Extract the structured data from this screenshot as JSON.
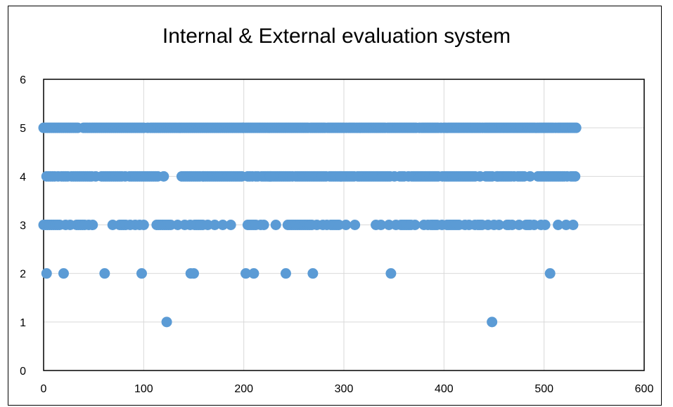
{
  "chart_data": {
    "type": "scatter",
    "title": "Internal & External evaluation system",
    "xlabel": "",
    "ylabel": "",
    "xlim": [
      0,
      600
    ],
    "ylim": [
      0,
      6
    ],
    "x_ticks": [
      "0",
      "100",
      "200",
      "300",
      "400",
      "500",
      "600"
    ],
    "y_ticks": [
      "0",
      "1",
      "2",
      "3",
      "4",
      "5",
      "6"
    ],
    "grid": true,
    "legend": "none",
    "marker_color": "#5b9bd5",
    "series": [
      {
        "values_by_level": {
          "5": {
            "ranges": [
              [
                0,
                35
              ],
              [
                40,
                100
              ],
              [
                107,
                200
              ],
              [
                202,
                210
              ],
              [
                214,
                265
              ],
              [
                269,
                282
              ],
              [
                286,
                300
              ],
              [
                305,
                342
              ],
              [
                346,
                373
              ],
              [
                378,
                394
              ],
              [
                400,
                436
              ],
              [
                441,
                509
              ],
              [
                514,
                532
              ]
            ],
            "points": [
              104,
              199.5,
              212,
              267,
              284,
              302.5,
              344,
              375.5,
              397,
              438.5,
              511.5
            ]
          },
          "4": {
            "ranges": [
              [
                3,
                12
              ],
              [
                18,
                25
              ],
              [
                28,
                48
              ],
              [
                58,
                78
              ],
              [
                86,
                96
              ],
              [
                98,
                115
              ],
              [
                138,
                156
              ],
              [
                160,
                198
              ],
              [
                204,
                206
              ],
              [
                212,
                214
              ],
              [
                218,
                246
              ],
              [
                252,
                283
              ],
              [
                286,
                310
              ],
              [
                314,
                346
              ],
              [
                356,
                361
              ],
              [
                368,
                395
              ],
              [
                401,
                431
              ],
              [
                442,
                448
              ],
              [
                453,
                467
              ],
              [
                474,
                481
              ],
              [
                494,
                520
              ],
              [
                527,
                532
              ]
            ],
            "points": [
              14.5,
              52,
              81.5,
              120,
              159,
              208.5,
              226.5,
              248.5,
              297,
              350.5,
              364.5,
              398.5,
              436,
              453.5,
              470,
              486,
              523
            ]
          },
          "3": {
            "ranges": [
              [
                0,
                16
              ],
              [
                33,
                41
              ],
              [
                76,
                82
              ],
              [
                113,
                128
              ],
              [
                151,
                159
              ],
              [
                204,
                212
              ],
              [
                244,
                268
              ],
              [
                287,
                296
              ],
              [
                332,
                333
              ],
              [
                357,
                367
              ],
              [
                387,
                394
              ],
              [
                403,
                416
              ],
              [
                434,
                438
              ],
              [
                463,
                465
              ],
              [
                482,
                486
              ]
            ],
            "points": [
              22,
              26.5,
              45,
              49,
              69,
              86.5,
              91.5,
              96,
              100,
              134,
              141,
              146.5,
              164,
              171,
              179,
              187,
              217,
              220,
              232,
              273,
              279,
              283,
              302,
              311,
              337,
              345,
              352,
              371,
              380,
              384,
              398,
              421,
              425,
              431,
              444,
              450,
              455,
              468,
              475,
              490,
              497,
              501,
              514,
              522,
              529
            ]
          },
          "2": {
            "points": [
              3,
              20,
              61,
              98,
              147,
              150,
              202,
              210,
              242,
              269,
              347,
              506
            ]
          },
          "1": {
            "points": [
              123,
              448
            ]
          }
        }
      }
    ]
  }
}
